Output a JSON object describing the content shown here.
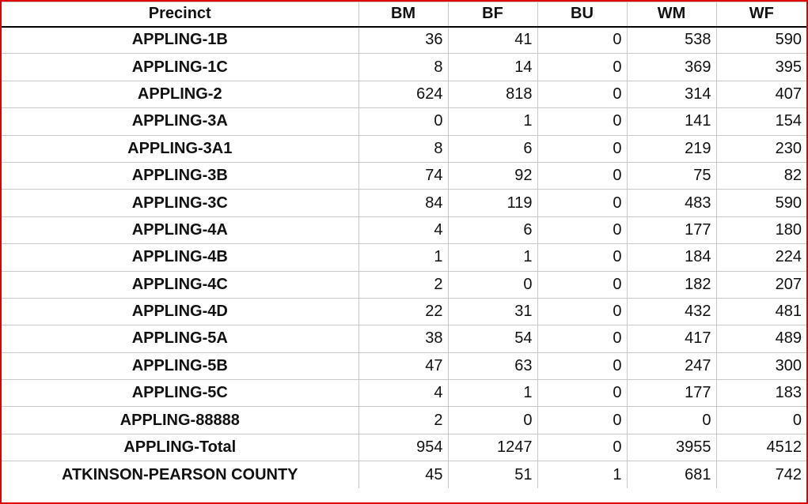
{
  "table": {
    "headers": [
      "Precinct",
      "BM",
      "BF",
      "BU",
      "WM",
      "WF"
    ],
    "rows": [
      {
        "precinct": "APPLING-1B",
        "bm": "36",
        "bf": "41",
        "bu": "0",
        "wm": "538",
        "wf": "590"
      },
      {
        "precinct": "APPLING-1C",
        "bm": "8",
        "bf": "14",
        "bu": "0",
        "wm": "369",
        "wf": "395"
      },
      {
        "precinct": "APPLING-2",
        "bm": "624",
        "bf": "818",
        "bu": "0",
        "wm": "314",
        "wf": "407"
      },
      {
        "precinct": "APPLING-3A",
        "bm": "0",
        "bf": "1",
        "bu": "0",
        "wm": "141",
        "wf": "154"
      },
      {
        "precinct": "APPLING-3A1",
        "bm": "8",
        "bf": "6",
        "bu": "0",
        "wm": "219",
        "wf": "230"
      },
      {
        "precinct": "APPLING-3B",
        "bm": "74",
        "bf": "92",
        "bu": "0",
        "wm": "75",
        "wf": "82"
      },
      {
        "precinct": "APPLING-3C",
        "bm": "84",
        "bf": "119",
        "bu": "0",
        "wm": "483",
        "wf": "590"
      },
      {
        "precinct": "APPLING-4A",
        "bm": "4",
        "bf": "6",
        "bu": "0",
        "wm": "177",
        "wf": "180"
      },
      {
        "precinct": "APPLING-4B",
        "bm": "1",
        "bf": "1",
        "bu": "0",
        "wm": "184",
        "wf": "224"
      },
      {
        "precinct": "APPLING-4C",
        "bm": "2",
        "bf": "0",
        "bu": "0",
        "wm": "182",
        "wf": "207"
      },
      {
        "precinct": "APPLING-4D",
        "bm": "22",
        "bf": "31",
        "bu": "0",
        "wm": "432",
        "wf": "481"
      },
      {
        "precinct": "APPLING-5A",
        "bm": "38",
        "bf": "54",
        "bu": "0",
        "wm": "417",
        "wf": "489"
      },
      {
        "precinct": "APPLING-5B",
        "bm": "47",
        "bf": "63",
        "bu": "0",
        "wm": "247",
        "wf": "300"
      },
      {
        "precinct": "APPLING-5C",
        "bm": "4",
        "bf": "1",
        "bu": "0",
        "wm": "177",
        "wf": "183"
      },
      {
        "precinct": "APPLING-88888",
        "bm": "2",
        "bf": "0",
        "bu": "0",
        "wm": "0",
        "wf": "0"
      },
      {
        "precinct": "APPLING-Total",
        "bm": "954",
        "bf": "1247",
        "bu": "0",
        "wm": "3955",
        "wf": "4512"
      },
      {
        "precinct": "ATKINSON-PEARSON COUNTY",
        "bm": "45",
        "bf": "51",
        "bu": "1",
        "wm": "681",
        "wf": "742"
      }
    ]
  },
  "colors": {
    "frame_border": "#e00000",
    "grid_line": "#c8c8c8",
    "header_rule": "#000000",
    "text": "#111111"
  }
}
